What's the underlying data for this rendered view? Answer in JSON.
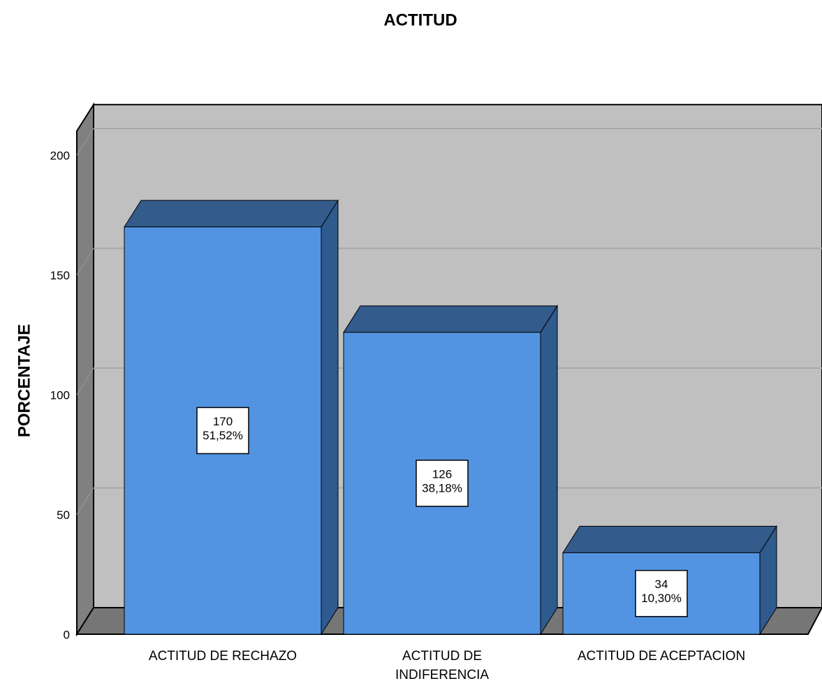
{
  "chart_data": {
    "type": "bar3d",
    "title": "ACTITUD",
    "y_label": "PORCENTAJE",
    "categories": [
      "ACTITUD DE RECHAZO",
      "ACTITUD DE\nINDIFERENCIA",
      "ACTITUD DE ACEPTACION"
    ],
    "values": [
      170,
      126,
      34
    ],
    "percentage_labels": [
      "51,52%",
      "38,18%",
      "10,30%"
    ],
    "color": "#5294e2",
    "ylim": [
      0,
      210
    ],
    "yticks": [
      0,
      50,
      100,
      150,
      200
    ],
    "grid": true
  }
}
